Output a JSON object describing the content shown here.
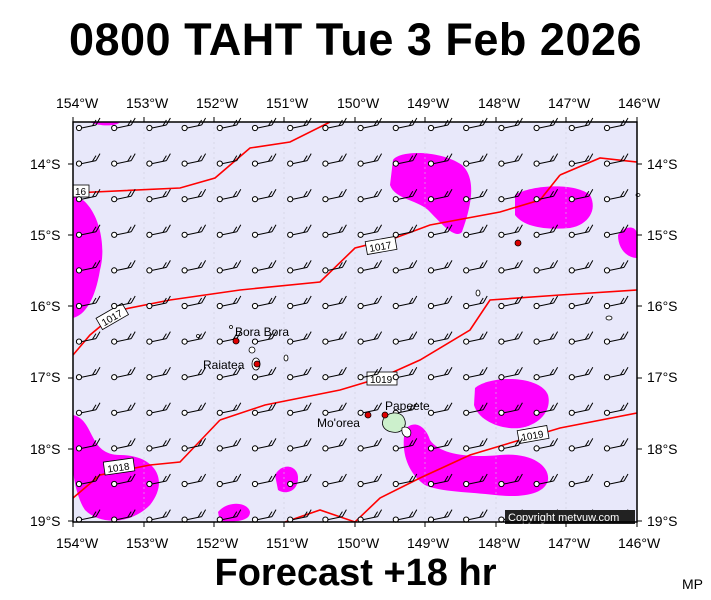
{
  "title": "0800 TAHT Tue 3 Feb 2026",
  "footer": "Forecast +18 hr",
  "credit_corner": "MP",
  "copyright": "Copyright metvuw.com",
  "longitudes": [
    "154°W",
    "153°W",
    "152°W",
    "151°W",
    "150°W",
    "149°W",
    "148°W",
    "147°W",
    "146°W"
  ],
  "latitudes": [
    "14°S",
    "15°S",
    "16°S",
    "17°S",
    "18°S",
    "19°S"
  ],
  "places": [
    {
      "name": "Bora Bora",
      "lon": -151.75,
      "lat": -16.5
    },
    {
      "name": "Raiatea",
      "lon": -151.45,
      "lat": -16.82
    },
    {
      "name": "Mo'orea",
      "lon": -149.83,
      "lat": -17.53
    },
    {
      "name": "Papeete",
      "lon": -149.57,
      "lat": -17.53
    }
  ],
  "isobar_labels": [
    "16",
    "1017",
    "1017",
    "1019",
    "1018",
    "1019"
  ],
  "colors": {
    "sea": "#e8e8fa",
    "precip": "#ff00ff",
    "isobar": "#ff0000",
    "station": "#000000"
  },
  "wind_barbs": "uniform light south-easterly flow across grid"
}
